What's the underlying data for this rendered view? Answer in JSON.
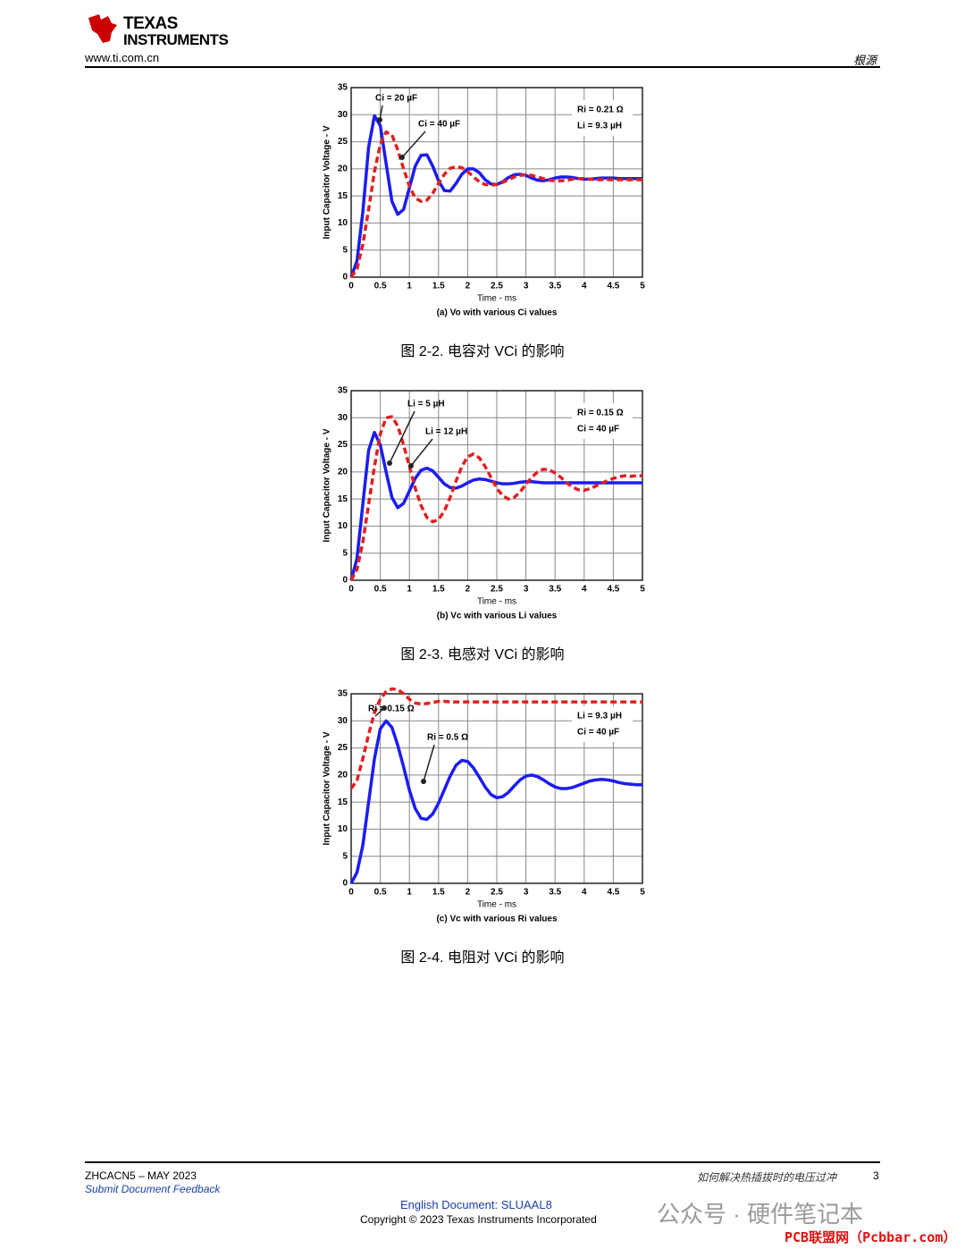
{
  "header": {
    "logo_line1": "TEXAS",
    "logo_line2": "INSTRUMENTS",
    "url": "www.ti.com.cn",
    "section": "根源"
  },
  "footer": {
    "doc_id": "ZHCACN5 – MAY 2023",
    "feedback": "Submit Document Feedback",
    "doc_title": "如何解决热插拔时的电压过冲",
    "page": "3",
    "english_doc": "English Document: SLUAAL8",
    "copyright": "Copyright © 2023 Texas Instruments Incorporated"
  },
  "watermark": {
    "account": "公众号 · 硬件笔记本",
    "site": "PCB联盟网（Pcbbar.com）"
  },
  "chart_data": [
    {
      "type": "line",
      "subtitle": "(a) Vo with various Ci values",
      "caption": "图 2-2. 电容对 VCi 的影响",
      "xlabel": "Time - ms",
      "ylabel": "Input Capacitor Voltage - V",
      "xlim": [
        0,
        5
      ],
      "ylim": [
        0,
        35
      ],
      "xticks": [
        0,
        0.5,
        1,
        1.5,
        2,
        2.5,
        3,
        3.5,
        4,
        4.5,
        5
      ],
      "yticks": [
        0,
        5,
        10,
        15,
        20,
        25,
        30,
        35
      ],
      "grid": true,
      "annotations": [
        "Ci = 20 µF",
        "Ci = 40 µF",
        "Ri = 0.21 Ω",
        "Li = 9.3 µH"
      ],
      "x": [
        0,
        0.1,
        0.2,
        0.3,
        0.4,
        0.5,
        0.6,
        0.7,
        0.8,
        0.9,
        1,
        1.1,
        1.2,
        1.3,
        1.4,
        1.5,
        1.6,
        1.7,
        1.8,
        1.9,
        2,
        2.1,
        2.2,
        2.3,
        2.4,
        2.5,
        2.6,
        2.7,
        2.8,
        2.9,
        3,
        3.1,
        3.2,
        3.3,
        3.4,
        3.5,
        3.6,
        3.7,
        3.8,
        3.9,
        4,
        4.1,
        4.2,
        4.3,
        4.4,
        4.5,
        4.6,
        4.7,
        4.8,
        4.9,
        5
      ],
      "series": [
        {
          "color": "#1c1cf0",
          "dashed": false,
          "values": [
            0,
            3,
            12,
            24,
            29.8,
            28,
            21,
            14,
            11.6,
            12.5,
            16.5,
            20.5,
            22.5,
            22.6,
            20.5,
            17.8,
            16,
            15.9,
            17.3,
            19,
            20,
            20,
            19.3,
            18,
            17.2,
            17.1,
            17.6,
            18.4,
            18.9,
            19,
            18.8,
            18.3,
            17.9,
            17.8,
            18,
            18.3,
            18.5,
            18.5,
            18.4,
            18.2,
            18.1,
            18.1,
            18.2,
            18.3,
            18.3,
            18.3,
            18.2,
            18.2,
            18.2,
            18.2,
            18.2
          ]
        },
        {
          "color": "#e02020",
          "dashed": true,
          "values": [
            0,
            1.5,
            6,
            12.5,
            19.5,
            24.5,
            26.8,
            26.3,
            23.5,
            20,
            16.8,
            14.6,
            14,
            14.2,
            15.5,
            17.3,
            19,
            20.1,
            20.4,
            20.2,
            19.5,
            18.5,
            17.6,
            17.1,
            17,
            17.1,
            17.5,
            18,
            18.5,
            18.8,
            18.9,
            18.8,
            18.5,
            18.2,
            17.9,
            17.8,
            17.8,
            17.9,
            18.1,
            18.2,
            18.2,
            18.1,
            18,
            18,
            18,
            18,
            18,
            18,
            18,
            18,
            18
          ]
        }
      ]
    },
    {
      "type": "line",
      "subtitle": "(b) Vc with various Li values",
      "caption": "图 2-3. 电感对 VCi 的影响",
      "xlabel": "Time - ms",
      "ylabel": "Input Capacitor Voltage - V",
      "xlim": [
        0,
        5
      ],
      "ylim": [
        0,
        35
      ],
      "xticks": [
        0,
        0.5,
        1,
        1.5,
        2,
        2.5,
        3,
        3.5,
        4,
        4.5,
        5
      ],
      "yticks": [
        0,
        5,
        10,
        15,
        20,
        25,
        30,
        35
      ],
      "grid": true,
      "annotations": [
        "Li = 5 µH",
        "Li = 12 µH",
        "Ri = 0.15 Ω",
        "Ci = 40 µF"
      ],
      "x": [
        0,
        0.1,
        0.2,
        0.3,
        0.4,
        0.5,
        0.6,
        0.7,
        0.8,
        0.9,
        1,
        1.1,
        1.2,
        1.3,
        1.4,
        1.5,
        1.6,
        1.7,
        1.8,
        1.9,
        2,
        2.1,
        2.2,
        2.3,
        2.4,
        2.5,
        2.6,
        2.7,
        2.8,
        2.9,
        3,
        3.1,
        3.2,
        3.3,
        3.4,
        3.5,
        3.6,
        3.7,
        3.8,
        3.9,
        4,
        4.1,
        4.2,
        4.3,
        4.4,
        4.5,
        4.6,
        4.7,
        4.8,
        4.9,
        5
      ],
      "series": [
        {
          "color": "#1c1cf0",
          "dashed": false,
          "values": [
            0,
            4,
            14,
            24,
            27.3,
            25,
            20,
            15.3,
            13.4,
            14.2,
            16.5,
            18.8,
            20.3,
            20.7,
            20.2,
            19,
            17.8,
            17.1,
            17,
            17.4,
            18,
            18.5,
            18.7,
            18.6,
            18.3,
            18,
            17.8,
            17.8,
            17.9,
            18.1,
            18.2,
            18.2,
            18.1,
            18,
            18,
            18,
            18,
            18,
            18,
            18,
            18,
            18,
            18,
            18,
            18,
            18,
            18,
            18,
            18,
            18,
            18
          ]
        },
        {
          "color": "#e02020",
          "dashed": true,
          "values": [
            0,
            2,
            7,
            14,
            21,
            27,
            30,
            30.2,
            28.5,
            25,
            21,
            17,
            13.8,
            11.6,
            10.8,
            11.2,
            12.8,
            15.3,
            18.3,
            21,
            22.8,
            23.3,
            22.6,
            21,
            19,
            17,
            15.6,
            15,
            15.3,
            16.3,
            17.7,
            19,
            20,
            20.5,
            20.4,
            19.8,
            19,
            18,
            17.2,
            16.7,
            16.6,
            16.9,
            17.4,
            17.9,
            18.4,
            18.8,
            19.1,
            19.3,
            19.2,
            19.3,
            19.3
          ]
        }
      ]
    },
    {
      "type": "line",
      "subtitle": "(c) Vc with various Ri values",
      "caption": "图 2-4. 电阻对 VCi 的影响",
      "xlabel": "Time - ms",
      "ylabel": "Input Capacitor Voltage - V",
      "xlim": [
        0,
        5
      ],
      "ylim": [
        0,
        35
      ],
      "xticks": [
        0,
        0.5,
        1,
        1.5,
        2,
        2.5,
        3,
        3.5,
        4,
        4.5,
        5
      ],
      "yticks": [
        0,
        5,
        10,
        15,
        20,
        25,
        30,
        35
      ],
      "grid": true,
      "annotations": [
        "Ri = 0.15 Ω",
        "Ri = 0.5 Ω",
        "Li = 9.3 µH",
        "Ci = 40 µF"
      ],
      "x": [
        0,
        0.1,
        0.2,
        0.3,
        0.4,
        0.5,
        0.6,
        0.7,
        0.8,
        0.9,
        1,
        1.1,
        1.2,
        1.3,
        1.4,
        1.5,
        1.6,
        1.7,
        1.8,
        1.9,
        2,
        2.1,
        2.2,
        2.3,
        2.4,
        2.5,
        2.6,
        2.7,
        2.8,
        2.9,
        3,
        3.1,
        3.2,
        3.3,
        3.4,
        3.5,
        3.6,
        3.7,
        3.8,
        3.9,
        4,
        4.1,
        4.2,
        4.3,
        4.4,
        4.5,
        4.6,
        4.7,
        4.8,
        4.9,
        5
      ],
      "series": [
        {
          "color": "#1c1cf0",
          "dashed": false,
          "values": [
            0,
            2,
            7,
            15,
            23,
            28.5,
            30,
            28.8,
            25.5,
            21.5,
            17.2,
            13.8,
            12,
            11.8,
            12.8,
            14.8,
            17.3,
            19.8,
            21.8,
            22.7,
            22.5,
            21.3,
            19.6,
            17.8,
            16.4,
            15.8,
            16,
            16.8,
            18,
            19.1,
            19.8,
            20,
            19.7,
            19.1,
            18.4,
            17.8,
            17.5,
            17.5,
            17.7,
            18.1,
            18.5,
            18.9,
            19.1,
            19.2,
            19.1,
            18.9,
            18.6,
            18.4,
            18.3,
            18.2,
            18.2
          ]
        },
        {
          "color": "#e02020",
          "dashed": true,
          "values": [
            17.5,
            19,
            23,
            27.5,
            31.5,
            34,
            35.4,
            35.9,
            35.8,
            35,
            34,
            33.3,
            33.1,
            33.2,
            33.4,
            33.6,
            33.6,
            33.5,
            33.5,
            33.5,
            33.5,
            33.5,
            33.5,
            33.5,
            33.5,
            33.5,
            33.5,
            33.5,
            33.5,
            33.5,
            33.5,
            33.5,
            33.5,
            33.5,
            33.5,
            33.5,
            33.5,
            33.5,
            33.5,
            33.5,
            33.5,
            33.5,
            33.5,
            33.5,
            33.5,
            33.5,
            33.5,
            33.5,
            33.5,
            33.5,
            33.5
          ]
        }
      ]
    }
  ]
}
